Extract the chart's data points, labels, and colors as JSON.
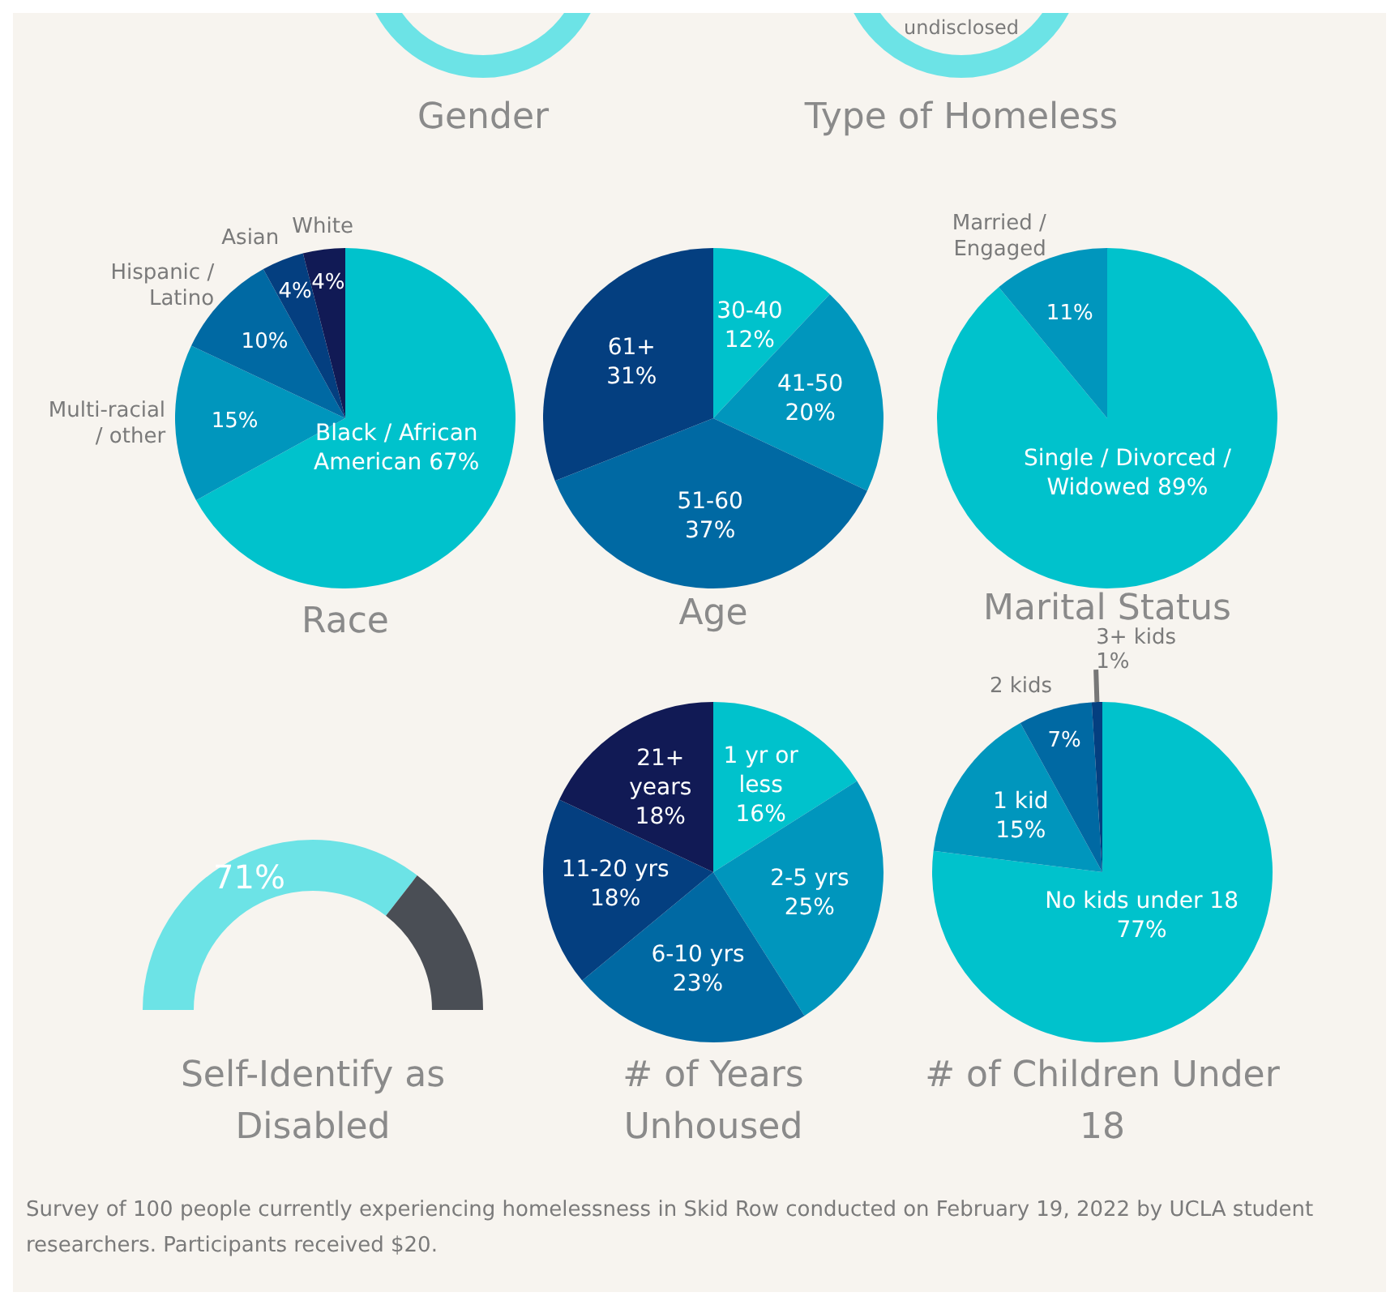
{
  "chart_data": [
    {
      "type": "other",
      "title": "Gender"
    },
    {
      "type": "other",
      "title": "Type of Homeless",
      "annotations": [
        "undisclosed"
      ]
    },
    {
      "type": "pie",
      "title": "Race",
      "categories": [
        "Black / African American",
        "Multi-racial / other",
        "Hispanic / Latino",
        "Asian",
        "White"
      ],
      "values": [
        67,
        15,
        10,
        4,
        4
      ],
      "value_labels": [
        "67%",
        "15%",
        "10%",
        "4%",
        "4%"
      ],
      "colors": [
        "#00c2cc",
        "#0096bd",
        "#0069a3",
        "#043f80",
        "#111a55"
      ]
    },
    {
      "type": "pie",
      "title": "Age",
      "categories": [
        "30-40",
        "41-50",
        "51-60",
        "61+"
      ],
      "values": [
        12,
        20,
        37,
        31
      ],
      "value_labels": [
        "12%",
        "20%",
        "37%",
        "31%"
      ],
      "colors": [
        "#00c2cc",
        "#0096bd",
        "#0069a3",
        "#043f80"
      ]
    },
    {
      "type": "pie",
      "title": "Marital Status",
      "categories": [
        "Single / Divorced / Widowed",
        "Married / Engaged"
      ],
      "values": [
        89,
        11
      ],
      "value_labels": [
        "89%",
        "11%"
      ],
      "colors": [
        "#00c2cc",
        "#0096bd"
      ]
    },
    {
      "type": "donut",
      "title": "Self-Identify as Disabled",
      "categories": [
        null,
        null
      ],
      "values": [
        71,
        29
      ],
      "value_labels": [
        "71%",
        null
      ],
      "colors": [
        "#6ce3e6",
        "#4a4e55"
      ]
    },
    {
      "type": "pie",
      "title": "# of Years Unhoused",
      "categories": [
        "1 yr or less",
        "2-5 yrs",
        "6-10 yrs",
        "11-20 yrs",
        "21+ years"
      ],
      "values": [
        16,
        25,
        23,
        18,
        18
      ],
      "value_labels": [
        "16%",
        "25%",
        "23%",
        "18%",
        "18%"
      ],
      "colors": [
        "#00c2cc",
        "#0096bd",
        "#0069a3",
        "#043f80",
        "#111a55"
      ]
    },
    {
      "type": "pie",
      "title": "# of Children Under 18",
      "categories": [
        "No kids under 18",
        "1 kid",
        "2 kids",
        "3+ kids"
      ],
      "values": [
        77,
        15,
        7,
        1
      ],
      "value_labels": [
        "77%",
        "15%",
        "7%",
        "1%"
      ],
      "colors": [
        "#00c2cc",
        "#0096bd",
        "#0069a3",
        "#043f80"
      ],
      "annotations": [
        "Survey of 100 people currently experiencing homelessness in Skid Row conducted on February 19, 2022 by UCLA student researchers. Participants received $20."
      ]
    }
  ]
}
